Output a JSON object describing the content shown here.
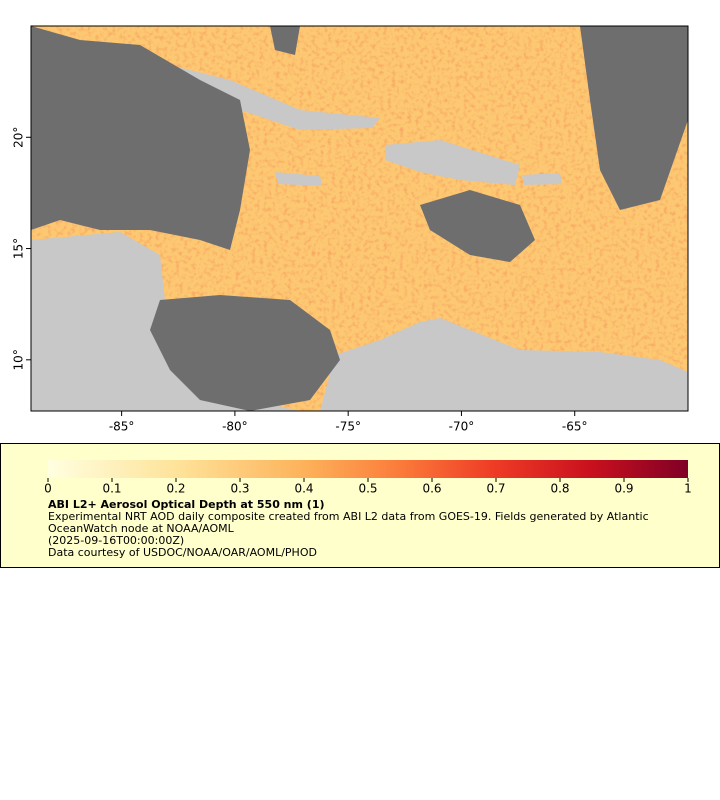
{
  "map": {
    "xlim": [
      -89,
      -60
    ],
    "ylim": [
      7.7,
      25
    ],
    "xticks": [
      {
        "value": -85,
        "label": "-85°"
      },
      {
        "value": -80,
        "label": "-80°"
      },
      {
        "value": -75,
        "label": "-75°"
      },
      {
        "value": -70,
        "label": "-70°"
      },
      {
        "value": -65,
        "label": "-65°"
      }
    ],
    "yticks": [
      {
        "value": 10,
        "label": "10°"
      },
      {
        "value": 15,
        "label": "15°"
      },
      {
        "value": 20,
        "label": "20°"
      }
    ]
  },
  "colorbar": {
    "lim": [
      0,
      1
    ],
    "ticks": [
      0,
      0.1,
      0.2,
      0.3,
      0.4,
      0.5,
      0.6,
      0.7,
      0.8,
      0.9,
      1
    ]
  },
  "legend": {
    "title": "ABI L2+ Aerosol Optical Depth at 550 nm (1)",
    "description": "Experimental NRT AOD daily composite created from ABI L2 data from GOES-19. Fields generated by Atlantic OceanWatch node at NOAA/AOML",
    "time": "(2025-09-16T00:00:00Z)",
    "credit": "Data courtesy of USDOC/NOAA/OAR/AOML/PHOD"
  }
}
